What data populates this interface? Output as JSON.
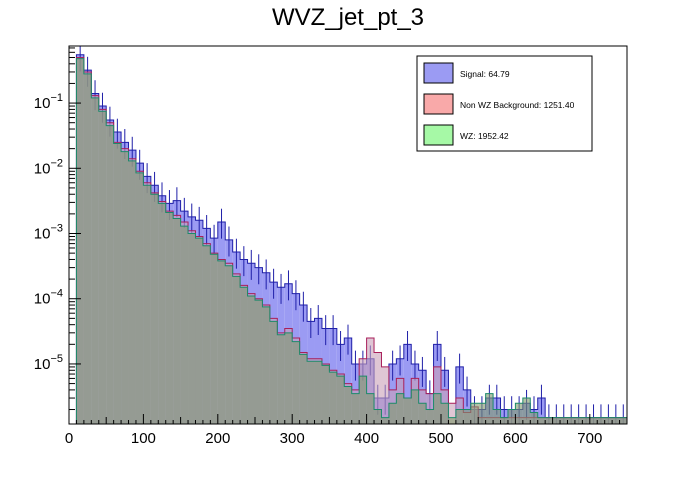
{
  "chart_data": {
    "type": "histogram",
    "title": "WVZ_jet_pt_3",
    "xlabel": "",
    "ylabel": "",
    "y_scale": "log",
    "xlim": [
      0,
      750
    ],
    "ylim": [
      1.2e-06,
      0.75
    ],
    "bin_width": 10,
    "x_ticks": [
      "0",
      "100",
      "200",
      "300",
      "400",
      "500",
      "600",
      "700"
    ],
    "y_ticks": [
      {
        "base": "10",
        "exp": "−1",
        "value": 0.1
      },
      {
        "base": "10",
        "exp": "−2",
        "value": 0.01
      },
      {
        "base": "10",
        "exp": "−3",
        "value": 0.001
      },
      {
        "base": "10",
        "exp": "−4",
        "value": 0.0001
      },
      {
        "base": "10",
        "exp": "−5",
        "value": 1e-05
      }
    ],
    "legend": [
      {
        "label": "Signal: 64.79",
        "color": "#9b9bf3"
      },
      {
        "label": "Non WZ Background: 1251.40",
        "color": "#f9a9a9"
      },
      {
        "label": "WZ: 1952.42",
        "color": "#a6f9a6"
      }
    ],
    "series": [
      {
        "name": "Signal",
        "color": "#9b9bf3",
        "edge": "#1f1fa8",
        "values": [
          0.55,
          0.32,
          0.14,
          0.09,
          0.055,
          0.036,
          0.025,
          0.019,
          0.012,
          0.0075,
          0.0055,
          0.0038,
          0.0029,
          0.0032,
          0.0022,
          0.0018,
          0.0016,
          0.0012,
          0.00085,
          0.0015,
          0.0008,
          0.00052,
          0.0004,
          0.00035,
          0.0003,
          0.00025,
          0.00018,
          0.00015,
          0.00017,
          0.00012,
          8e-05,
          4.5e-05,
          5e-05,
          3.5e-05,
          3.5e-05,
          2e-05,
          2.5e-05,
          1e-05,
          1e-05,
          1.2e-05,
          3e-06,
          3e-06,
          1e-05,
          1.2e-05,
          2e-05,
          1e-05,
          8e-06,
          3.5e-06,
          2e-05,
          8e-06,
          0,
          9e-06,
          4e-06,
          2e-06,
          2e-06,
          3e-06,
          3e-06,
          2e-06,
          2e-06,
          2e-06,
          2.5e-06,
          2e-06,
          3e-06,
          1.5e-06,
          1.5e-06,
          1.5e-06,
          1.5e-06,
          1.5e-06,
          1.5e-06,
          1.5e-06,
          1.5e-06,
          1.5e-06,
          1.5e-06,
          1.5e-06
        ]
      },
      {
        "name": "Non WZ Background",
        "color": "#f9a9a9",
        "edge": "#a81f5a",
        "values": [
          0.5,
          0.3,
          0.13,
          0.08,
          0.05,
          0.025,
          0.02,
          0.014,
          0.009,
          0.006,
          0.0042,
          0.0031,
          0.0022,
          0.0019,
          0.0015,
          0.0011,
          0.0009,
          0.0007,
          0.0005,
          0.0004,
          0.00035,
          0.00024,
          0.00016,
          0.00012,
          0.0001,
          8e-05,
          5e-05,
          3e-05,
          3.5e-05,
          2.5e-05,
          1.5e-05,
          1.2e-05,
          1.2e-05,
          1e-05,
          8e-06,
          7e-06,
          5e-06,
          4e-06,
          1.2e-05,
          2.5e-05,
          1.5e-05,
          9e-06,
          4e-06,
          6e-06,
          3e-06,
          6e-06,
          4e-06,
          3.5e-06,
          9e-06,
          4e-06,
          2.5e-06,
          3e-06,
          1.8e-06,
          2.2e-06,
          1.5e-06,
          1.5e-06,
          1.5e-06,
          1.5e-06,
          1.5e-06,
          1.5e-06,
          1.5e-06,
          1.5e-06,
          1.5e-06,
          1.5e-06,
          1.5e-06,
          1.5e-06,
          1.5e-06,
          1.5e-06,
          1.5e-06,
          1.5e-06,
          1.5e-06,
          1.5e-06,
          1.5e-06,
          1.5e-06
        ]
      },
      {
        "name": "WZ",
        "color": "#a6f9a6",
        "edge": "#1c8a6a",
        "values": [
          0.48,
          0.28,
          0.12,
          0.075,
          0.045,
          0.024,
          0.018,
          0.013,
          0.0085,
          0.0055,
          0.004,
          0.0029,
          0.0021,
          0.0017,
          0.0013,
          0.001,
          0.00085,
          0.00065,
          0.00048,
          0.00038,
          0.00032,
          0.00022,
          0.00015,
          0.00011,
          9.5e-05,
          7.5e-05,
          4.5e-05,
          2.8e-05,
          3e-05,
          2.2e-05,
          1.4e-05,
          1.1e-05,
          1.1e-05,
          9.5e-06,
          7.5e-06,
          6.5e-06,
          4.5e-06,
          3.5e-06,
          6.5e-06,
          3.5e-06,
          2e-06,
          1.5e-06,
          2.5e-06,
          3.5e-06,
          3e-06,
          4e-06,
          2.5e-06,
          2e-06,
          3.5e-06,
          2.5e-06,
          1.5e-06,
          2e-06,
          2e-06,
          2.5e-06,
          2.5e-06,
          3.5e-06,
          2e-06,
          1.5e-06,
          2e-06,
          2.5e-06,
          3e-06,
          1.8e-06,
          1.5e-06,
          1.5e-06,
          1.5e-06,
          1.5e-06,
          1.5e-06,
          1.5e-06,
          1.5e-06,
          1.5e-06,
          1.5e-06,
          1.5e-06,
          1.5e-06,
          1.5e-06
        ]
      }
    ]
  }
}
